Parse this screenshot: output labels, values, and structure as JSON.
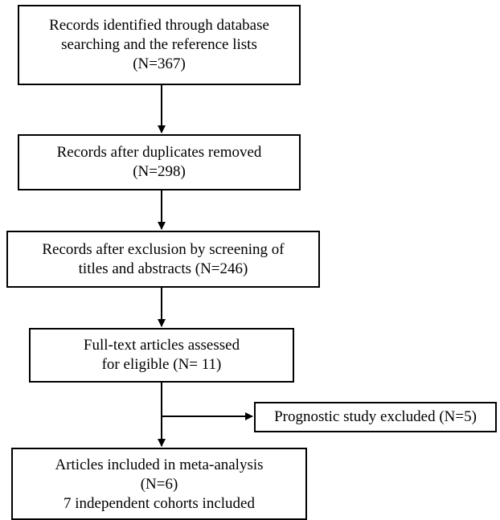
{
  "flowchart": {
    "boxes": [
      {
        "lines": [
          "Records identified through database",
          "searching and the reference lists",
          "(N=367)"
        ]
      },
      {
        "lines": [
          "Records after duplicates removed",
          "(N=298)"
        ]
      },
      {
        "lines": [
          "Records after exclusion by screening of",
          "titles and abstracts (N=246)"
        ]
      },
      {
        "lines": [
          "Full-text articles assessed",
          "for eligible (N= 11)"
        ]
      },
      {
        "lines": [
          "Articles included in meta-analysis",
          "(N=6)",
          "7  independent cohorts included"
        ]
      }
    ],
    "exclusion": {
      "text": "Prognostic study excluded (N=5)"
    }
  }
}
